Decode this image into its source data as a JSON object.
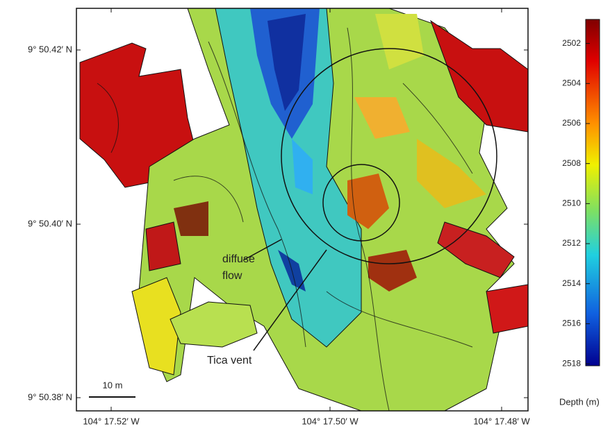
{
  "map": {
    "x_labels": [
      "104° 17.52′ W",
      "104° 17.50′ W",
      "104° 17.48′ W"
    ],
    "y_labels": [
      "9° 50.42′ N",
      "9° 50.40′ N",
      "9° 50.38′ N"
    ],
    "annotations": [
      "diffuse",
      "flow",
      "Tica vent"
    ],
    "scale_bar": "10 m",
    "colorbar": {
      "label": "Depth (m)",
      "lim": [
        2500.8,
        2518.1
      ],
      "ticks": [
        2502,
        2504,
        2506,
        2508,
        2510,
        2512,
        2514,
        2516,
        2518
      ]
    }
  }
}
